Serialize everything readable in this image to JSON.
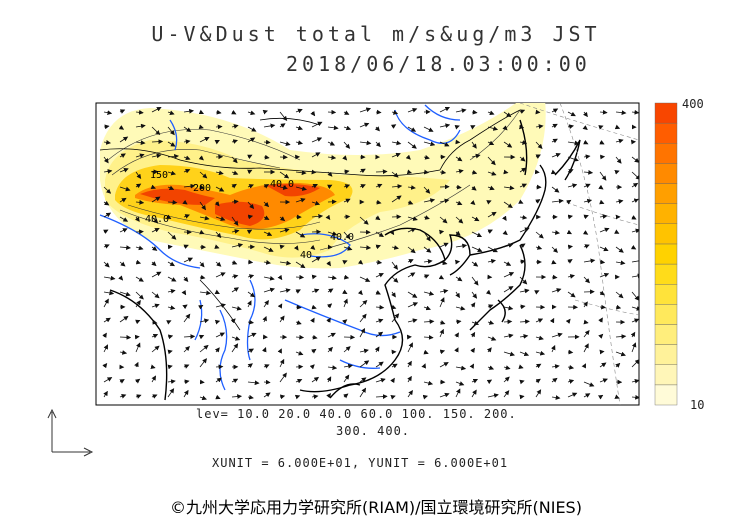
{
  "title": {
    "line1": "U-V&Dust total m/s&ug/m3 JST",
    "line2": "2018/06/18.03:00:00"
  },
  "levels": {
    "line1": "lev= 10.0 20.0 40.0 60.0 100. 150. 200.",
    "line2": "300. 400."
  },
  "units": "XUNIT = 6.000E+01, YUNIT = 6.000E+01",
  "colorbar": {
    "max_label": "400",
    "min_label": "10",
    "colors": [
      "#fffbd8",
      "#fff6b8",
      "#fff29a",
      "#ffee7c",
      "#ffe95c",
      "#ffe33a",
      "#ffdc1a",
      "#ffd200",
      "#ffc300",
      "#ffb200",
      "#ff9f00",
      "#ff8a00",
      "#ff7400",
      "#ff5d00",
      "#f84600"
    ]
  },
  "map_labels": [
    "40.0",
    "150",
    "200",
    "40",
    "40.0",
    "40.0"
  ],
  "credit": "©九州大学応用力学研究所(RIAM)/国立環境研究所(NIES)",
  "colors": {
    "coast": "#000000",
    "river": "#1f5fff",
    "grid": "#888888",
    "dust_low": "#fff6b0",
    "dust_high": "#f04400"
  }
}
